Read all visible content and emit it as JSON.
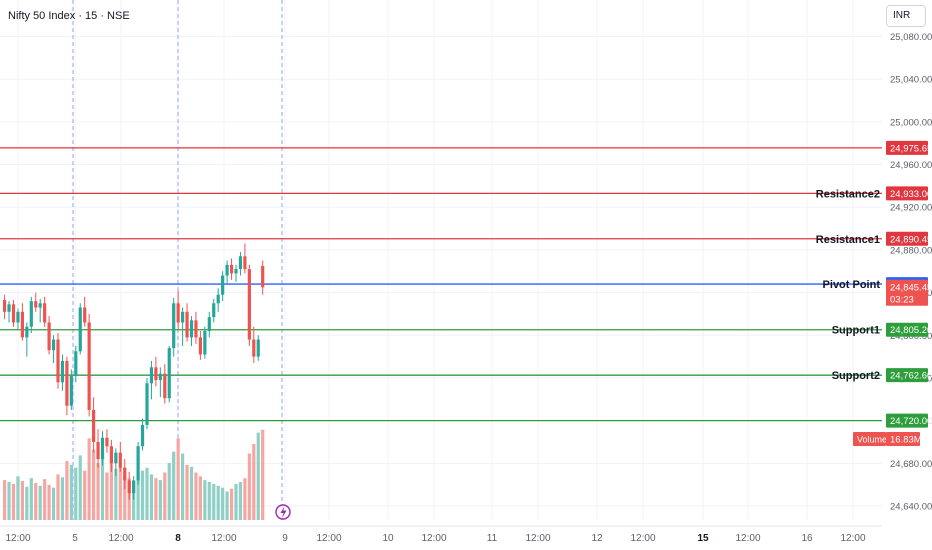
{
  "header": {
    "title": "Nifty 50 Index · 15 · NSE",
    "currency": "INR"
  },
  "colors": {
    "up": "#26a69a",
    "down": "#ef5350",
    "up_volume": "#8ed0c5",
    "down_volume": "#f5a5a2",
    "resistance": "#e0363f",
    "support": "#2e9e3c",
    "pivot": "#2962ff",
    "grid": "#f0f3fa",
    "axis_text": "#5d606b"
  },
  "chart_data": {
    "type": "candlestick",
    "symbol": "Nifty 50 Index",
    "interval": "15",
    "exchange": "NSE",
    "ylim": [
      24620,
      25075
    ],
    "y_ticks": [
      "24,640.00",
      "24,680.00",
      "24,720.00",
      "24,760.00",
      "24,800.00",
      "24,840.00",
      "24,880.00",
      "24,920.00",
      "24,960.00",
      "25,000.00",
      "25,040.00",
      "25,080.00"
    ],
    "x_ticks": [
      "12:00",
      "5",
      "12:00",
      "8",
      "12:00",
      "9",
      "12:00",
      "10",
      "12:00",
      "11",
      "12:00",
      "12",
      "12:00",
      "15",
      "12:00",
      "16",
      "12:00"
    ],
    "x_ticks_bold": [
      false,
      false,
      false,
      true,
      false,
      false,
      false,
      false,
      false,
      false,
      false,
      false,
      false,
      true,
      false,
      false,
      false
    ],
    "session_separators": [
      "5",
      "8",
      "9"
    ],
    "levels": [
      {
        "label": "",
        "value": 24975.65,
        "value_text": "24,975.65",
        "kind": "resistance"
      },
      {
        "label": "Resistance2",
        "value": 24933.0,
        "value_text": "24,933.00",
        "kind": "resistance"
      },
      {
        "label": "Resistance1",
        "value": 24890.45,
        "value_text": "24,890.45",
        "kind": "resistance"
      },
      {
        "label": "Pivot Point",
        "value": 24848.0,
        "value_text": "24,848.00",
        "kind": "pivot"
      },
      {
        "label": "Support1",
        "value": 24805.2,
        "value_text": "24,805.20",
        "kind": "support"
      },
      {
        "label": "Support2",
        "value": 24762.6,
        "value_text": "24,762.60",
        "kind": "support"
      },
      {
        "label": "",
        "value": 24720.0,
        "value_text": "24,720.00",
        "kind": "support"
      }
    ],
    "last_price": {
      "value": 24845.45,
      "value_text": "24,845.45",
      "countdown": "03:23"
    },
    "volume": {
      "label": "Volume",
      "value_text": "16.83M"
    },
    "candles": [
      [
        24833,
        24838,
        24815,
        24822
      ],
      [
        24822,
        24832,
        24812,
        24829
      ],
      [
        24829,
        24833,
        24808,
        24812
      ],
      [
        24812,
        24825,
        24806,
        24822
      ],
      [
        24822,
        24830,
        24795,
        24798
      ],
      [
        24798,
        24812,
        24780,
        24808
      ],
      [
        24808,
        24836,
        24802,
        24832
      ],
      [
        24832,
        24840,
        24822,
        24826
      ],
      [
        24826,
        24834,
        24812,
        24830
      ],
      [
        24830,
        24836,
        24808,
        24812
      ],
      [
        24812,
        24818,
        24782,
        24786
      ],
      [
        24786,
        24800,
        24774,
        24796
      ],
      [
        24796,
        24802,
        24750,
        24756
      ],
      [
        24756,
        24782,
        24748,
        24776
      ],
      [
        24776,
        24780,
        24725,
        24734
      ],
      [
        24734,
        24768,
        24730,
        24762
      ],
      [
        24762,
        24790,
        24756,
        24785
      ],
      [
        24785,
        24830,
        24782,
        24826
      ],
      [
        24826,
        24836,
        24808,
        24812
      ],
      [
        24812,
        24820,
        24724,
        24730
      ],
      [
        24730,
        24742,
        24690,
        24700
      ],
      [
        24700,
        24712,
        24676,
        24684
      ],
      [
        24684,
        24710,
        24678,
        24704
      ],
      [
        24704,
        24712,
        24690,
        24696
      ],
      [
        24696,
        24702,
        24672,
        24680
      ],
      [
        24680,
        24694,
        24668,
        24690
      ],
      [
        24690,
        24700,
        24672,
        24676
      ],
      [
        24676,
        24684,
        24656,
        24664
      ],
      [
        24664,
        24672,
        24646,
        24652
      ],
      [
        24652,
        24668,
        24646,
        24664
      ],
      [
        24664,
        24700,
        24660,
        24696
      ],
      [
        24696,
        24722,
        24692,
        24716
      ],
      [
        24716,
        24760,
        24712,
        24755
      ],
      [
        24755,
        24776,
        24740,
        24770
      ],
      [
        24770,
        24780,
        24752,
        24758
      ],
      [
        24758,
        24770,
        24742,
        24764
      ],
      [
        24764,
        24773,
        24736,
        24741
      ],
      [
        24741,
        24790,
        24737,
        24788
      ],
      [
        24788,
        24835,
        24780,
        24830
      ],
      [
        24830,
        24842,
        24805,
        24812
      ],
      [
        24812,
        24826,
        24790,
        24822
      ],
      [
        24822,
        24830,
        24794,
        24798
      ],
      [
        24798,
        24818,
        24790,
        24814
      ],
      [
        24814,
        24822,
        24792,
        24798
      ],
      [
        24798,
        24804,
        24777,
        24782
      ],
      [
        24782,
        24808,
        24778,
        24804
      ],
      [
        24804,
        24822,
        24798,
        24817
      ],
      [
        24817,
        24834,
        24812,
        24830
      ],
      [
        24830,
        24844,
        24822,
        24838
      ],
      [
        24838,
        24860,
        24832,
        24856
      ],
      [
        24856,
        24870,
        24848,
        24866
      ],
      [
        24866,
        24872,
        24852,
        24858
      ],
      [
        24858,
        24866,
        24850,
        24862
      ],
      [
        24862,
        24878,
        24856,
        24874
      ],
      [
        24874,
        24886,
        24858,
        24862
      ],
      [
        24862,
        24866,
        24790,
        24796
      ],
      [
        24796,
        24808,
        24774,
        24780
      ],
      [
        24780,
        24800,
        24776,
        24796
      ],
      [
        24865,
        24870,
        24838,
        24845
      ]
    ],
    "volumes": [
      0.42,
      0.4,
      0.38,
      0.46,
      0.41,
      0.35,
      0.44,
      0.39,
      0.36,
      0.43,
      0.37,
      0.34,
      0.48,
      0.45,
      0.62,
      0.58,
      0.55,
      0.68,
      0.52,
      0.86,
      0.74,
      0.6,
      0.66,
      0.5,
      0.62,
      0.54,
      0.56,
      0.47,
      0.44,
      0.4,
      0.46,
      0.52,
      0.55,
      0.48,
      0.44,
      0.42,
      0.5,
      0.6,
      0.72,
      0.86,
      0.7,
      0.58,
      0.56,
      0.5,
      0.46,
      0.42,
      0.4,
      0.38,
      0.36,
      0.34,
      0.3,
      0.33,
      0.38,
      0.4,
      0.44,
      0.7,
      0.8,
      0.92,
      0.95
    ]
  }
}
